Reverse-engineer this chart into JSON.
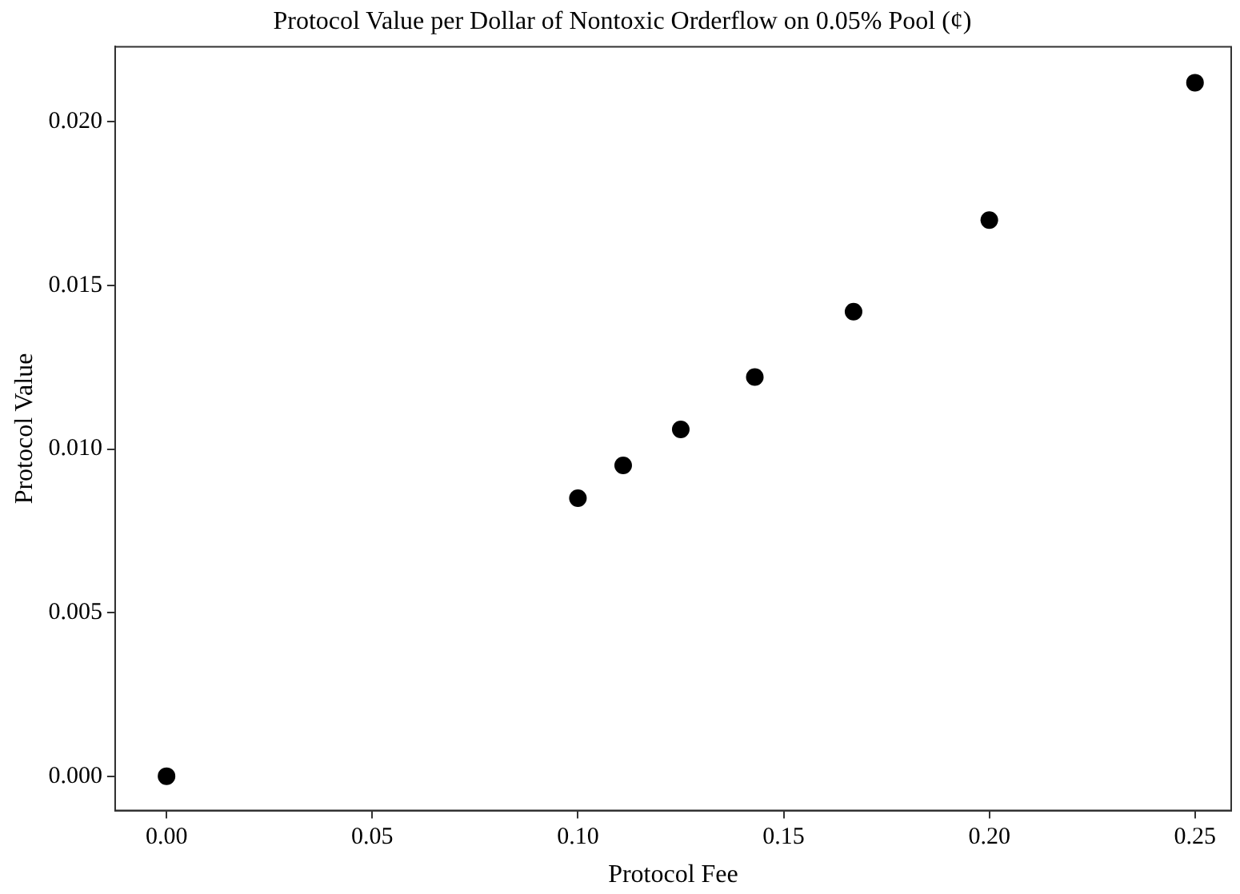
{
  "chart_data": {
    "type": "scatter",
    "title": "Protocol Value per Dollar of Nontoxic Orderflow on 0.05% Pool (¢)",
    "xlabel": "Protocol Fee",
    "ylabel": "Protocol Value",
    "x": [
      0,
      0.1,
      0.111,
      0.125,
      0.143,
      0.167,
      0.2,
      0.25
    ],
    "series": [
      {
        "color": "#000000",
        "values": [
          0,
          0.0085,
          0.0095,
          0.0106,
          0.0122,
          0.0142,
          0.017,
          0.0212
        ]
      }
    ],
    "xlim": [
      -0.0125,
      0.2588
    ],
    "ylim": [
      -0.00105,
      0.0223
    ],
    "xticks": [
      {
        "value": 0,
        "label": "0.00"
      },
      {
        "value": 0.05,
        "label": "0.05"
      },
      {
        "value": 0.1,
        "label": "0.10"
      },
      {
        "value": 0.15,
        "label": "0.15"
      },
      {
        "value": 0.2,
        "label": "0.20"
      },
      {
        "value": 0.25,
        "label": "0.25"
      }
    ],
    "yticks": [
      {
        "value": 0,
        "label": "0.000"
      },
      {
        "value": 0.005,
        "label": "0.005"
      },
      {
        "value": 0.01,
        "label": "0.010"
      },
      {
        "value": 0.015,
        "label": "0.015"
      },
      {
        "value": 0.02,
        "label": "0.020"
      }
    ],
    "grid": false,
    "legend": false,
    "marker": "circle"
  }
}
